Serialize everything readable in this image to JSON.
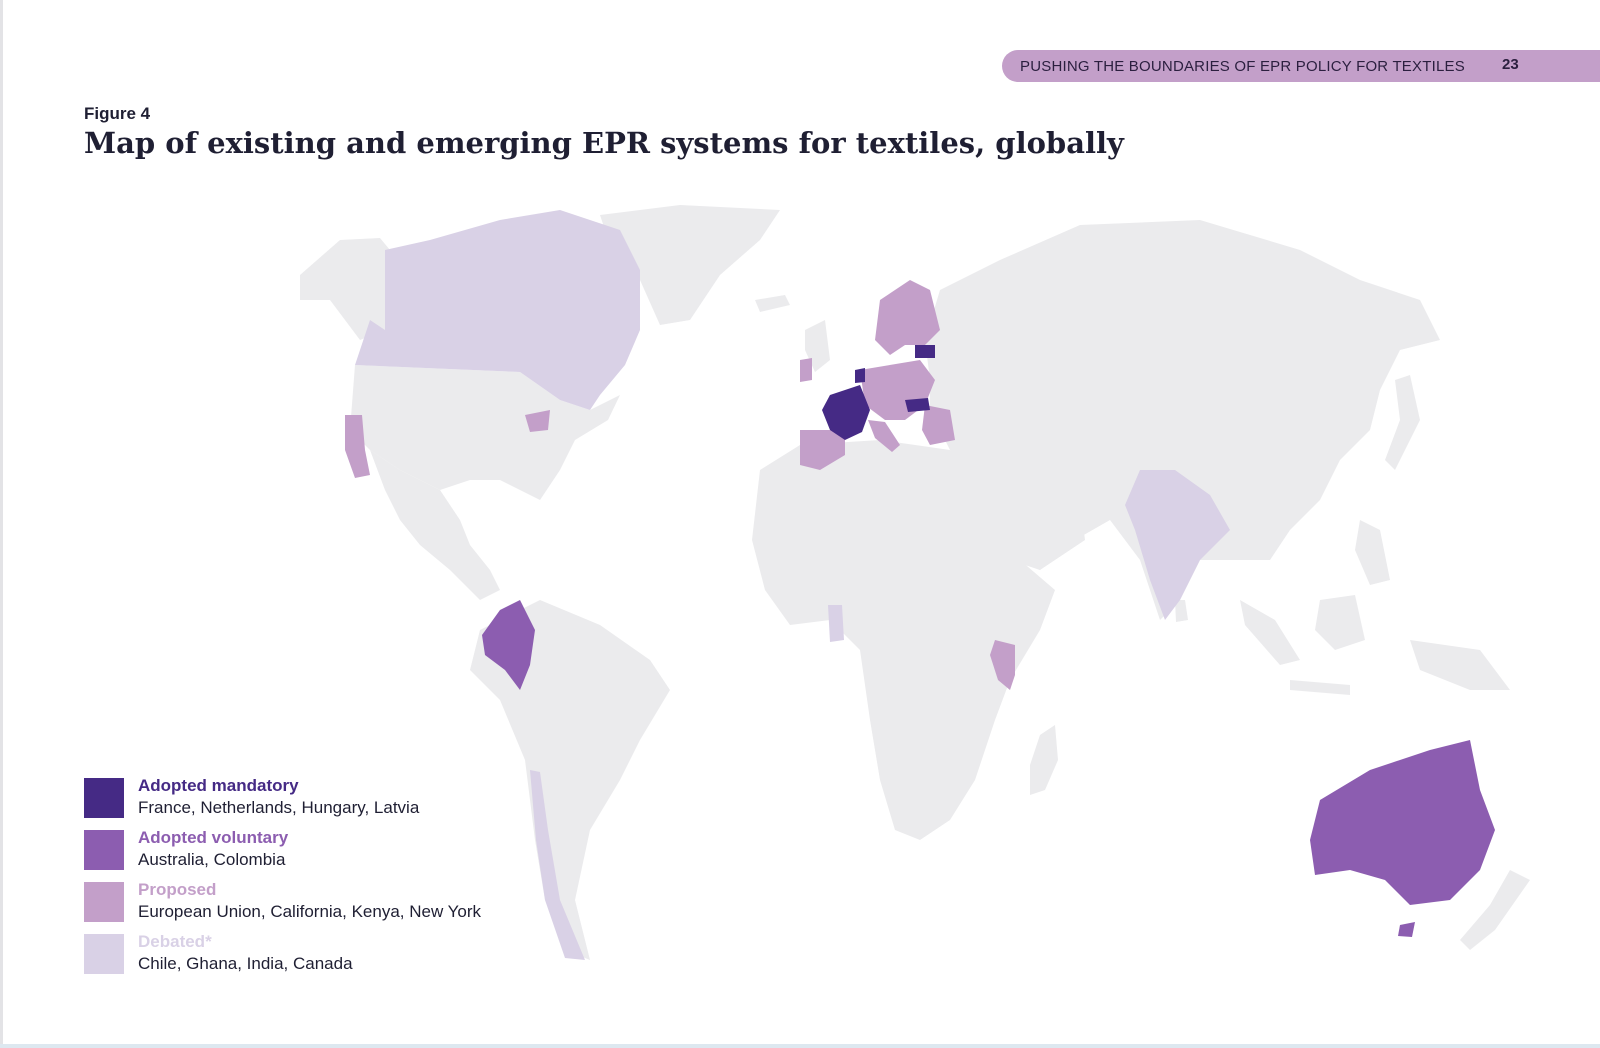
{
  "header": {
    "running_title": "PUSHING THE BOUNDARIES OF EPR POLICY FOR TEXTILES",
    "page_number": "23"
  },
  "figure": {
    "label": "Figure 4",
    "title": "Map of existing and emerging EPR systems for textiles, globally"
  },
  "colors": {
    "adopted_mandatory": "#452a85",
    "adopted_voluntary": "#8c5db0",
    "proposed": "#c39fc9",
    "debated": "#d9d1e6",
    "no_data": "#ebebed",
    "header_band": "#c39fc9"
  },
  "legend": [
    {
      "name": "Adopted mandatory",
      "countries": "France, Netherlands, Hungary, Latvia",
      "color_key": "adopted_mandatory"
    },
    {
      "name": "Adopted voluntary",
      "countries": "Australia, Colombia",
      "color_key": "adopted_voluntary"
    },
    {
      "name": "Proposed",
      "countries": "European Union, California, Kenya, New York",
      "color_key": "proposed"
    },
    {
      "name": "Debated*",
      "countries": "Chile, Ghana, India, Canada",
      "color_key": "debated"
    }
  ],
  "map_regions": [
    {
      "region": "France",
      "status": "adopted_mandatory"
    },
    {
      "region": "Netherlands",
      "status": "adopted_mandatory"
    },
    {
      "region": "Hungary",
      "status": "adopted_mandatory"
    },
    {
      "region": "Latvia",
      "status": "adopted_mandatory"
    },
    {
      "region": "Australia",
      "status": "adopted_voluntary"
    },
    {
      "region": "Colombia",
      "status": "adopted_voluntary"
    },
    {
      "region": "European Union",
      "status": "proposed"
    },
    {
      "region": "California",
      "status": "proposed"
    },
    {
      "region": "Kenya",
      "status": "proposed"
    },
    {
      "region": "New York",
      "status": "proposed"
    },
    {
      "region": "Chile",
      "status": "debated"
    },
    {
      "region": "Ghana",
      "status": "debated"
    },
    {
      "region": "India",
      "status": "debated"
    },
    {
      "region": "Canada",
      "status": "debated"
    }
  ]
}
